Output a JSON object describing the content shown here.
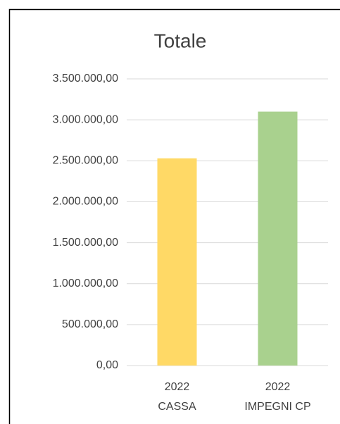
{
  "chart_data": {
    "type": "bar",
    "title": "Totale",
    "categories": [
      [
        "2022",
        "CASSA"
      ],
      [
        "2022",
        "IMPEGNI CP"
      ]
    ],
    "values": [
      2530000,
      3100000
    ],
    "colors": [
      "#ffd966",
      "#a9d18e"
    ],
    "ylim": [
      0,
      3500000
    ],
    "yticks": [
      {
        "value": 0,
        "label": "0,00"
      },
      {
        "value": 500000,
        "label": "500.000,00"
      },
      {
        "value": 1000000,
        "label": "1.000.000,00"
      },
      {
        "value": 1500000,
        "label": "1.500.000,00"
      },
      {
        "value": 2000000,
        "label": "2.000.000,00"
      },
      {
        "value": 2500000,
        "label": "2.500.000,00"
      },
      {
        "value": 3000000,
        "label": "3.000.000,00"
      },
      {
        "value": 3500000,
        "label": "3.500.000,00"
      }
    ],
    "grid": true
  }
}
